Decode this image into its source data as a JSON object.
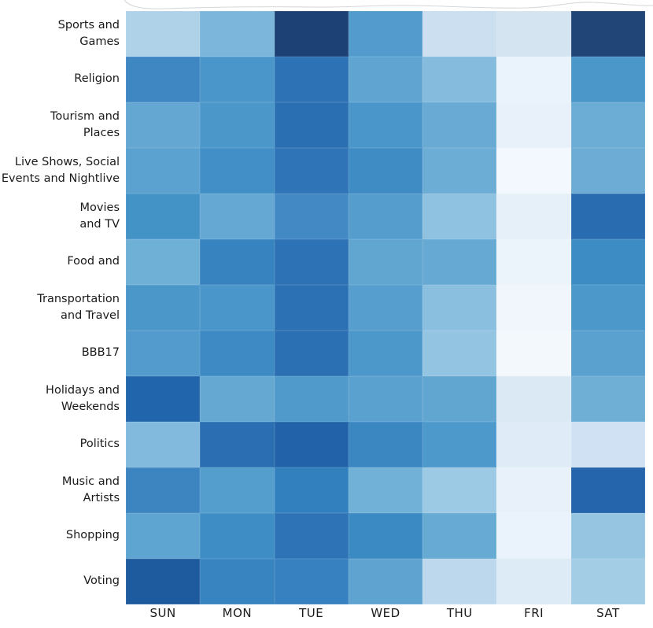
{
  "chart_data": {
    "type": "heatmap",
    "title": "",
    "xlabel": "",
    "ylabel": "",
    "legend": "none",
    "colormap": "Blues",
    "x_categories": [
      "SUN",
      "MON",
      "TUE",
      "WED",
      "THU",
      "FRI",
      "SAT"
    ],
    "y_categories": [
      "Sports and\nGames",
      "Religion",
      "Tourism and\nPlaces",
      "Live Shows, Social\nEvents and Nightlive",
      "Movies\nand TV",
      "Food and",
      "Transportation\nand Travel",
      "BBB17",
      "Holidays and\nWeekends",
      "Politics",
      "Music and\nArtists",
      "Shopping",
      "Voting"
    ],
    "cell_colors": [
      [
        "#b0d2e8",
        "#7cb7db",
        "#1e4175",
        "#529bcc",
        "#cbdff0",
        "#d5e4f1",
        "#224577"
      ],
      [
        "#3e87c3",
        "#4a96ca",
        "#2d72b5",
        "#60a5d1",
        "#85bcdd",
        "#eaf3fb",
        "#4b97ca"
      ],
      [
        "#64a7d2",
        "#4b97ca",
        "#2a6fb2",
        "#4a96ca",
        "#68aad4",
        "#e8f1fa",
        "#6cadd5"
      ],
      [
        "#5ba2d0",
        "#418fc6",
        "#2e74b6",
        "#3f8cc5",
        "#6cadd5",
        "#f2f8fd",
        "#6dadd5"
      ],
      [
        "#4493c7",
        "#64a8d3",
        "#4389c4",
        "#549dcd",
        "#8fc2e0",
        "#e6f0f9",
        "#2a6cb0"
      ],
      [
        "#6fb0d6",
        "#3783c0",
        "#2d72b4",
        "#61a5d1",
        "#66a9d3",
        "#ecf4fb",
        "#3e8cc4"
      ],
      [
        "#4b97ca",
        "#4a96ca",
        "#2c71b4",
        "#559ece",
        "#8abfdf",
        "#f0f6fc",
        "#4c98cb"
      ],
      [
        "#529bcc",
        "#3d8ac4",
        "#2b70b3",
        "#4c98cb",
        "#93c4e1",
        "#f3f8fd",
        "#5ba1cf"
      ],
      [
        "#2166ac",
        "#65a9d3",
        "#4f9acb",
        "#5ba1cf",
        "#61a5d1",
        "#dbe9f5",
        "#6fafd6"
      ],
      [
        "#82bade",
        "#2b6fb2",
        "#2162a8",
        "#3a87c2",
        "#4e99cb",
        "#dfecf7",
        "#cfe1f2"
      ],
      [
        "#3d85c0",
        "#549ecd",
        "#3380bf",
        "#72b1d7",
        "#9cc9e3",
        "#e8f1fa",
        "#2565ab"
      ],
      [
        "#5fa5d1",
        "#3f8dc5",
        "#2d73b5",
        "#3c8ac3",
        "#67aad4",
        "#eaf3fb",
        "#96c5e1"
      ],
      [
        "#1e5b9e",
        "#3884c1",
        "#3781c0",
        "#5fa3d0",
        "#bdd8ed",
        "#dcebf5",
        "#a3cce5"
      ]
    ],
    "intensity_0_to_1": [
      [
        0.31,
        0.46,
        0.93,
        0.58,
        0.23,
        0.19,
        0.92
      ],
      [
        0.66,
        0.61,
        0.74,
        0.54,
        0.44,
        0.07,
        0.61
      ],
      [
        0.53,
        0.61,
        0.76,
        0.61,
        0.52,
        0.08,
        0.5
      ],
      [
        0.56,
        0.64,
        0.74,
        0.65,
        0.5,
        0.03,
        0.5
      ],
      [
        0.62,
        0.53,
        0.66,
        0.58,
        0.41,
        0.09,
        0.77
      ],
      [
        0.49,
        0.68,
        0.74,
        0.54,
        0.52,
        0.06,
        0.65
      ],
      [
        0.61,
        0.61,
        0.75,
        0.57,
        0.43,
        0.04,
        0.6
      ],
      [
        0.59,
        0.65,
        0.75,
        0.6,
        0.4,
        0.03,
        0.56
      ],
      [
        0.79,
        0.53,
        0.6,
        0.56,
        0.54,
        0.14,
        0.49
      ],
      [
        0.45,
        0.75,
        0.81,
        0.67,
        0.6,
        0.12,
        0.21
      ],
      [
        0.66,
        0.58,
        0.69,
        0.48,
        0.38,
        0.08,
        0.8
      ],
      [
        0.55,
        0.64,
        0.74,
        0.65,
        0.52,
        0.07,
        0.39
      ],
      [
        0.84,
        0.68,
        0.69,
        0.55,
        0.27,
        0.13,
        0.36
      ]
    ],
    "axis_text_color": "#1a1a1a",
    "background_color": "#ffffff"
  }
}
